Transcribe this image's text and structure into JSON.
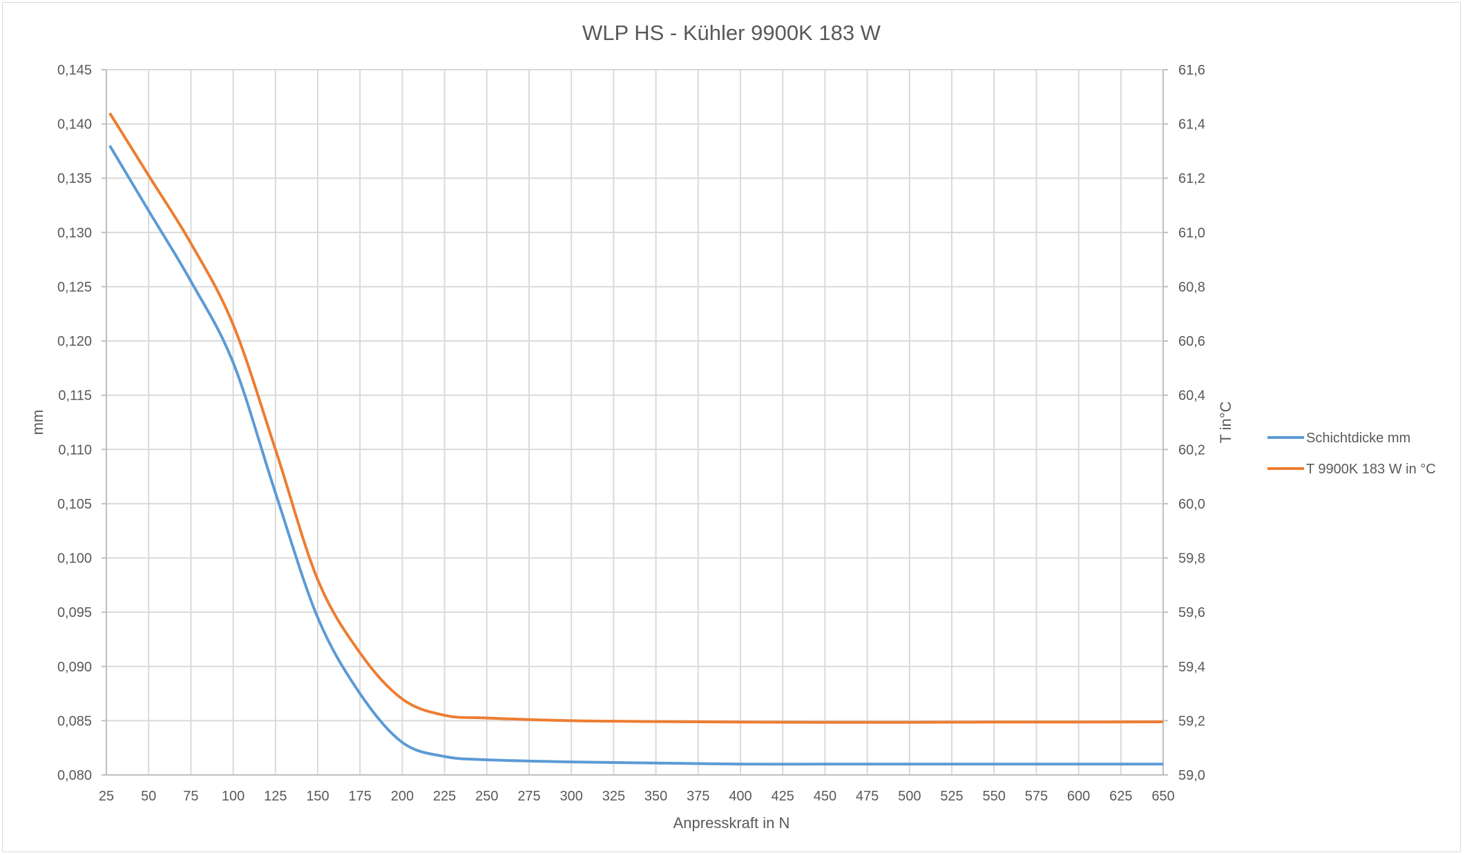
{
  "chart_data": {
    "type": "line",
    "title": "WLP HS - Kühler 9900K 183 W",
    "xlabel": "Anpresskraft in N",
    "ylabel": "mm",
    "y2label": "T in°C",
    "xlim": [
      25,
      650
    ],
    "ylim": [
      0.08,
      0.145
    ],
    "y2lim": [
      59.0,
      61.6
    ],
    "grid": true,
    "legend_position": "right",
    "x_ticks": [
      "25",
      "50",
      "75",
      "100",
      "125",
      "150",
      "175",
      "200",
      "225",
      "250",
      "275",
      "300",
      "325",
      "350",
      "375",
      "400",
      "425",
      "450",
      "475",
      "500",
      "525",
      "550",
      "575",
      "600",
      "625",
      "650"
    ],
    "y_ticks": [
      "0,080",
      "0,085",
      "0,090",
      "0,095",
      "0,100",
      "0,105",
      "0,110",
      "0,115",
      "0,120",
      "0,125",
      "0,130",
      "0,135",
      "0,140",
      "0,145"
    ],
    "y2_ticks": [
      "59,0",
      "59,2",
      "59,4",
      "59,6",
      "59,8",
      "60,0",
      "60,2",
      "60,4",
      "60,6",
      "60,8",
      "61,0",
      "61,2",
      "61,4",
      "61,6"
    ],
    "series": [
      {
        "name": "Schichtdicke mm",
        "axis": "left",
        "color": "#5b9bd5",
        "x": [
          27,
          50,
          75,
          100,
          125,
          150,
          175,
          200,
          225,
          250,
          300,
          350,
          400,
          450,
          500,
          550,
          600,
          650
        ],
        "values": [
          0.138,
          0.132,
          0.1255,
          0.118,
          0.106,
          0.0945,
          0.0875,
          0.083,
          0.0817,
          0.0814,
          0.0812,
          0.0811,
          0.081,
          0.081,
          0.081,
          0.081,
          0.081,
          0.081
        ]
      },
      {
        "name": "T 9900K 183 W in °C",
        "axis": "right",
        "color": "#ed7d31",
        "x": [
          27,
          50,
          75,
          100,
          125,
          150,
          175,
          200,
          225,
          250,
          300,
          350,
          400,
          450,
          500,
          550,
          600,
          650
        ],
        "values": [
          61.44,
          61.21,
          60.96,
          60.66,
          60.2,
          59.72,
          59.45,
          59.28,
          59.22,
          59.21,
          59.2,
          59.197,
          59.195,
          59.194,
          59.194,
          59.195,
          59.195,
          59.196
        ]
      }
    ]
  }
}
